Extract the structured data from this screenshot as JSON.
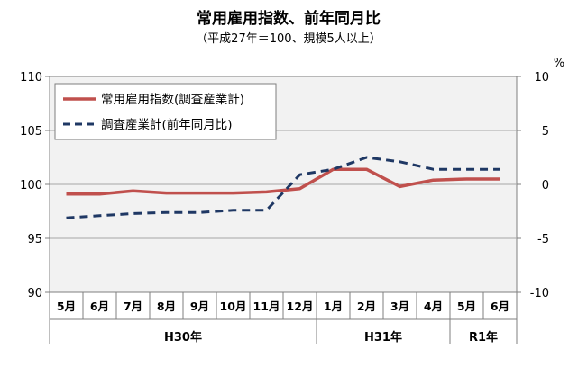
{
  "chart_data": {
    "type": "line",
    "title": "常用雇用指数、前年同月比",
    "subtitle": "（平成27年＝100、規模5人以上）",
    "categories": [
      "5月",
      "6月",
      "7月",
      "8月",
      "9月",
      "10月",
      "11月",
      "12月",
      "1月",
      "2月",
      "3月",
      "4月",
      "5月",
      "6月"
    ],
    "groups": [
      {
        "label": "H30年",
        "start": 0,
        "end": 7
      },
      {
        "label": "H31年",
        "start": 8,
        "end": 11
      },
      {
        "label": "R1年",
        "start": 12,
        "end": 13
      }
    ],
    "left_axis": {
      "ylim": [
        90,
        110
      ],
      "ticks": [
        "90",
        "95",
        "100",
        "105",
        "110"
      ]
    },
    "right_axis": {
      "ylim": [
        -10,
        10
      ],
      "ticks": [
        "-10",
        "-5",
        "0",
        "5",
        "10"
      ],
      "unit": "%"
    },
    "series": [
      {
        "name": "常用雇用指数(調査産業計)",
        "axis": "left",
        "color": "#c0504d",
        "style": "solid",
        "values": [
          99.1,
          99.1,
          99.4,
          99.2,
          99.2,
          99.2,
          99.3,
          99.6,
          101.4,
          101.4,
          99.8,
          100.4,
          100.5,
          100.5
        ]
      },
      {
        "name": "調査産業計(前年同月比)",
        "axis": "right",
        "color": "#1f3864",
        "style": "dashed",
        "values": [
          -3.1,
          -2.9,
          -2.7,
          -2.6,
          -2.6,
          -2.4,
          -2.4,
          0.9,
          1.4,
          2.5,
          2.1,
          1.4,
          1.4,
          1.4
        ]
      }
    ],
    "legend": "top-left",
    "grid": true
  }
}
